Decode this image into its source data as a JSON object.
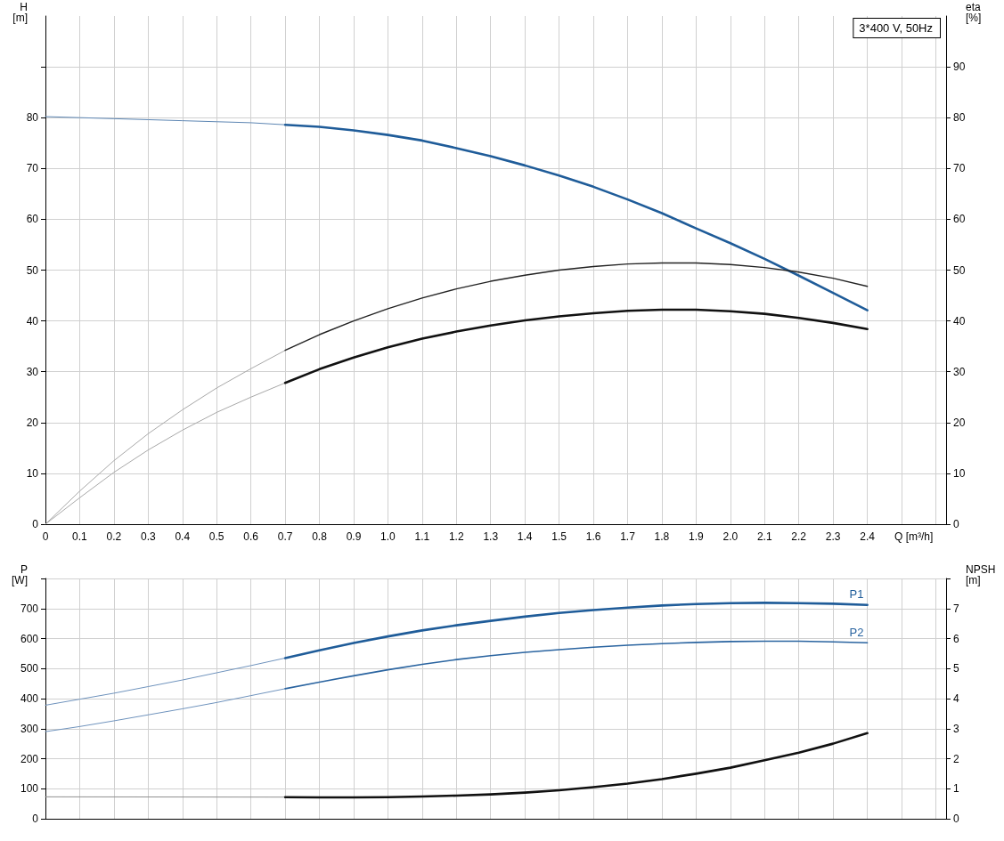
{
  "chart_data": [
    {
      "type": "line",
      "xlabel": "Q [m³/h]",
      "ylabel": "H [m]",
      "y2label": "eta [%]",
      "annotations": [
        "3*400 V, 50Hz"
      ],
      "xlim": [
        0,
        2.63
      ],
      "xticks": [
        0,
        0.1,
        0.2,
        0.3,
        0.4,
        0.5,
        0.6,
        0.7,
        0.8,
        0.9,
        {
          "value": 1,
          "label": "1.0"
        },
        1.1,
        1.2,
        1.3,
        1.4,
        1.5,
        1.6,
        1.7,
        1.8,
        1.9,
        {
          "value": 2,
          "label": "2.0"
        },
        2.1,
        2.2,
        2.3,
        2.4,
        {
          "value": 2.5,
          "label": null
        },
        {
          "value": 2.6,
          "label": null
        }
      ],
      "ylim": [
        0,
        100
      ],
      "yticks": [
        0,
        10,
        20,
        30,
        40,
        50,
        60,
        70,
        80,
        {
          "value": 90,
          "label": null
        }
      ],
      "y2lim": [
        0,
        100
      ],
      "y2ticks": [
        0,
        10,
        20,
        30,
        40,
        50,
        60,
        70,
        80,
        90
      ],
      "grid": true,
      "legend": false,
      "marker": "none",
      "line_style": "solid",
      "series": [
        {
          "color": "#5d86b3",
          "x": [
            0,
            0.1,
            0.2,
            0.3,
            0.4,
            0.5,
            0.6,
            0.7
          ],
          "values": [
            80.2,
            80,
            79.8,
            79.6,
            79.4,
            79.2,
            79,
            78.6
          ]
        },
        {
          "color": "#1f5c99",
          "x": [
            0.7,
            0.8,
            0.9,
            1,
            1.1,
            1.2,
            1.3,
            1.4,
            1.5,
            1.6,
            1.7,
            1.8,
            1.9,
            2,
            2.1,
            2.2,
            2.3,
            2.4
          ],
          "values": [
            78.6,
            78.2,
            77.5,
            76.6,
            75.5,
            74,
            72.4,
            70.6,
            68.6,
            66.4,
            63.9,
            61.2,
            58.2,
            55.3,
            52.2,
            48.9,
            45.5,
            42.1
          ]
        },
        {
          "color": "#a8a8a8",
          "axis": "y2",
          "x": [
            0,
            0.1,
            0.2,
            0.3,
            0.4,
            0.5,
            0.6,
            0.7
          ],
          "values": [
            0,
            6.5,
            12.5,
            17.8,
            22.5,
            26.8,
            30.6,
            34.2
          ]
        },
        {
          "color": "#222222",
          "axis": "y2",
          "x": [
            0.7,
            0.8,
            0.9,
            1,
            1.1,
            1.2,
            1.3,
            1.4,
            1.5,
            1.6,
            1.7,
            1.8,
            1.9,
            2,
            2.1,
            2.2,
            2.3,
            2.4
          ],
          "values": [
            34.2,
            37.3,
            40,
            42.4,
            44.5,
            46.3,
            47.8,
            49,
            50,
            50.7,
            51.2,
            51.4,
            51.4,
            51.1,
            50.5,
            49.6,
            48.4,
            46.8
          ]
        },
        {
          "color": "#a8a8a8",
          "axis": "y2",
          "x": [
            0,
            0.1,
            0.2,
            0.3,
            0.4,
            0.5,
            0.6,
            0.7
          ],
          "values": [
            0,
            5.2,
            10.2,
            14.6,
            18.5,
            22,
            25,
            27.8
          ]
        },
        {
          "color": "#111111",
          "axis": "y2",
          "x": [
            0.7,
            0.8,
            0.9,
            1,
            1.1,
            1.2,
            1.3,
            1.4,
            1.5,
            1.6,
            1.7,
            1.8,
            1.9,
            2,
            2.1,
            2.2,
            2.3,
            2.4
          ],
          "values": [
            27.8,
            30.5,
            32.8,
            34.8,
            36.5,
            37.9,
            39.1,
            40.1,
            40.9,
            41.5,
            42,
            42.2,
            42.2,
            41.9,
            41.4,
            40.6,
            39.6,
            38.4
          ]
        }
      ]
    },
    {
      "type": "line",
      "ylabel": "P [W]",
      "y2label": "NPSH [m]",
      "tick_labels": "y",
      "xlim": [
        0,
        2.63
      ],
      "xticks": [
        0,
        0.1,
        0.2,
        0.3,
        0.4,
        0.5,
        0.6,
        0.7,
        0.8,
        0.9,
        1,
        1.1,
        1.2,
        1.3,
        1.4,
        1.5,
        1.6,
        1.7,
        1.8,
        1.9,
        2,
        2.1,
        2.2,
        2.3,
        2.4,
        2.5,
        2.6
      ],
      "ylim": [
        0,
        800
      ],
      "yticks": [
        0,
        100,
        200,
        300,
        400,
        500,
        600,
        700,
        {
          "value": 800,
          "label": null
        }
      ],
      "y2lim": [
        0,
        8
      ],
      "y2ticks": [
        0,
        1,
        2,
        3,
        4,
        5,
        6,
        7,
        {
          "value": 8,
          "label": null
        }
      ],
      "grid": true,
      "legend": false,
      "marker": "none",
      "line_style": "solid",
      "series": [
        {
          "color": "#6f93bd",
          "x": [
            0,
            0.1,
            0.2,
            0.3,
            0.4,
            0.5,
            0.6,
            0.7
          ],
          "values": [
            378,
            398,
            418,
            440,
            462,
            486,
            510,
            535
          ]
        },
        {
          "name": "P1",
          "color": "#1f5c99",
          "x": [
            0.7,
            0.8,
            0.9,
            1,
            1.1,
            1.2,
            1.3,
            1.4,
            1.5,
            1.6,
            1.7,
            1.8,
            1.9,
            2,
            2.1,
            2.2,
            2.3,
            2.4
          ],
          "values": [
            535,
            561,
            585,
            607,
            627,
            644,
            659,
            673,
            685,
            695,
            703,
            710,
            715,
            718,
            719,
            718,
            716,
            712
          ]
        },
        {
          "color": "#6f93bd",
          "x": [
            0,
            0.1,
            0.2,
            0.3,
            0.4,
            0.5,
            0.6,
            0.7
          ],
          "values": [
            290,
            307,
            326,
            346,
            366,
            387,
            410,
            433
          ]
        },
        {
          "name": "P2",
          "color": "#2a64a0",
          "x": [
            0.7,
            0.8,
            0.9,
            1,
            1.1,
            1.2,
            1.3,
            1.4,
            1.5,
            1.6,
            1.7,
            1.8,
            1.9,
            2,
            2.1,
            2.2,
            2.3,
            2.4
          ],
          "values": [
            433,
            455,
            476,
            496,
            514,
            530,
            543,
            554,
            563,
            571,
            578,
            583,
            587,
            590,
            591,
            591,
            589,
            586
          ]
        },
        {
          "color": "#909090",
          "axis": "y2",
          "x": [
            0,
            0.7
          ],
          "values": [
            0.73,
            0.72
          ]
        },
        {
          "color": "#111111",
          "axis": "y2",
          "x": [
            0.7,
            0.8,
            0.9,
            1,
            1.1,
            1.2,
            1.3,
            1.4,
            1.5,
            1.6,
            1.7,
            1.8,
            1.9,
            2,
            2.1,
            2.2,
            2.3,
            2.4
          ],
          "values": [
            0.72,
            0.71,
            0.71,
            0.72,
            0.74,
            0.77,
            0.81,
            0.87,
            0.95,
            1.05,
            1.17,
            1.32,
            1.5,
            1.7,
            1.95,
            2.2,
            2.5,
            2.85
          ]
        }
      ]
    }
  ]
}
